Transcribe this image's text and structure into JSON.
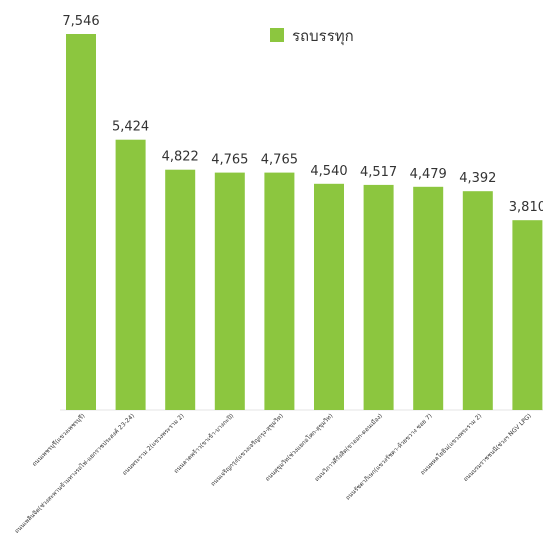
{
  "chart_data": {
    "type": "bar",
    "title": "",
    "xlabel": "",
    "ylabel": "",
    "ylim": [
      0,
      8000
    ],
    "grid": false,
    "legend_position": "top-right",
    "bar_color": "#8cc63f",
    "categories": [
      "ถนนเพชรบุรี(แขวงเพชรบุรี)",
      "ถนนเพลินจิต(ช่วงสะพานข้ามทางรถไฟ-แยกราชประสงค์ 23-24)",
      "ถนนพระราม 2(แขวงพระราม 2)",
      "ถนนลาดพร้าว(ขาเข้า-บางกะปิ)",
      "ถนนเจริญกรุง(แขวงเจริญกรุง-สุขุมวิท)",
      "ถนนสุขุมวิท(ช่วงแยกอโศก-สุขุมวิท)",
      "ถนนวิภาวดีรังสิต(ขาออก-ดอนเมือง)",
      "ถนนรัชดาภิเษก(แขวงรัชดา-ห้วยขวาง ซอย 7)",
      "ถนนพหลโยธิน(แขวงพระราม 2)",
      "ถนนบรมราชชนนี(ช่วงฯ NGV LPG)"
    ],
    "series": [
      {
        "name": "รถบรรทุก",
        "values": [
          7546,
          5424,
          4822,
          4765,
          4765,
          4540,
          4517,
          4479,
          4392,
          3810
        ],
        "labels": [
          "7,546",
          "5,424",
          "4,822",
          "4,765",
          "4,765",
          "4,540",
          "4,517",
          "4,479",
          "4,392",
          "3,810"
        ]
      }
    ]
  }
}
